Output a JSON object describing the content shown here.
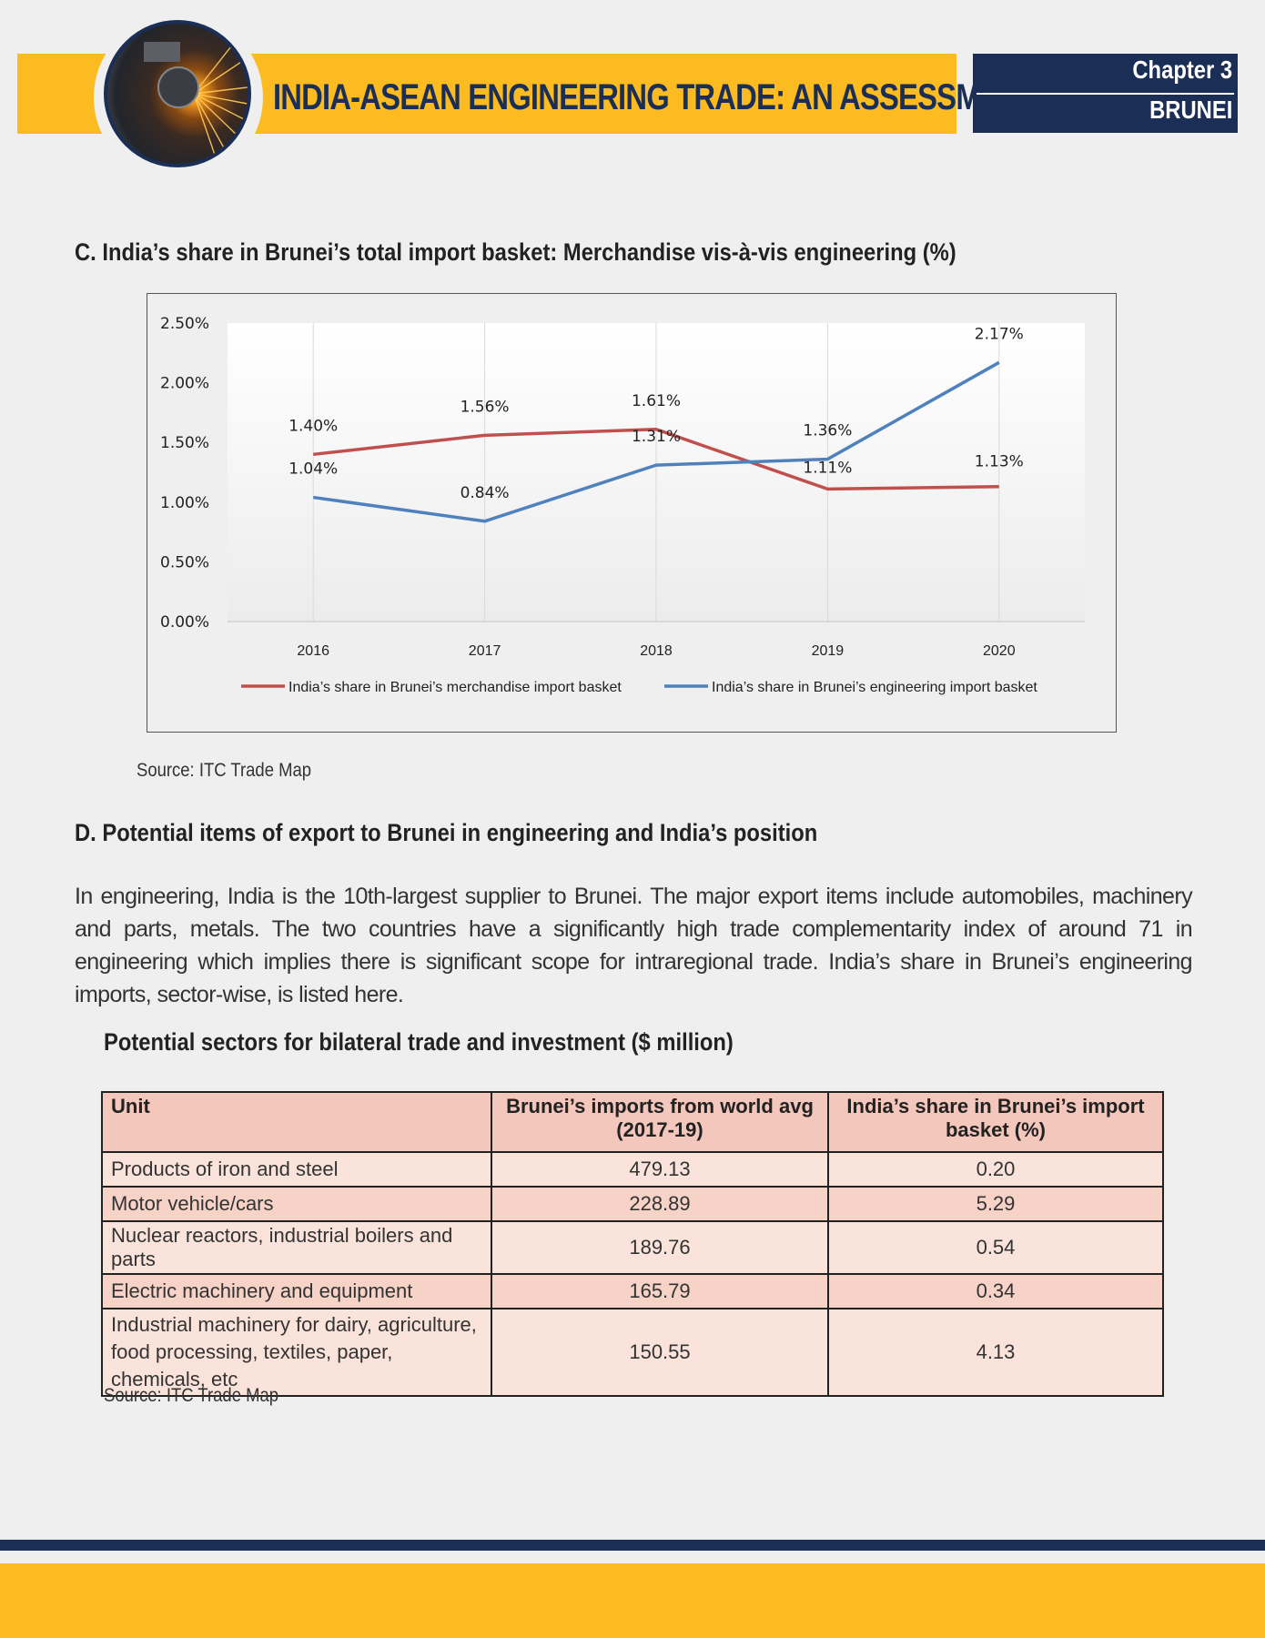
{
  "header": {
    "title": "INDIA-ASEAN ENGINEERING TRADE: AN ASSESSMENT",
    "chapter": "Chapter 3",
    "country": "BRUNEI",
    "logo_icon": "grinding-sparks-icon"
  },
  "section_c": {
    "title": "C.  India’s share in Brunei’s total import basket: Merchandise vis-à-vis engineering (%)",
    "source": "Source: ITC Trade Map"
  },
  "chart_data": {
    "type": "line",
    "title": "",
    "xlabel": "",
    "ylabel": "",
    "categories": [
      "2016",
      "2017",
      "2018",
      "2019",
      "2020"
    ],
    "y_ticks": [
      "0.00%",
      "0.50%",
      "1.00%",
      "1.50%",
      "2.00%",
      "2.50%"
    ],
    "ylim": [
      0,
      2.5
    ],
    "grid": "vertical",
    "legend_position": "bottom",
    "series": [
      {
        "name": "India’s share in Brunei’s merchandise import basket",
        "color": "#c0504d",
        "values": [
          1.4,
          1.56,
          1.61,
          1.11,
          1.13
        ],
        "labels": [
          "1.40%",
          "1.56%",
          "1.61%",
          "1.11%",
          "1.13%"
        ]
      },
      {
        "name": "India’s share in Brunei’s engineering import basket",
        "color": "#4f81bd",
        "values": [
          1.04,
          0.84,
          1.31,
          1.36,
          2.17
        ],
        "labels": [
          "1.04%",
          "0.84%",
          "1.31%",
          "1.36%",
          "2.17%"
        ]
      }
    ]
  },
  "section_d": {
    "title": "D.  Potential items of export to Brunei in engineering and India’s position",
    "body": "In engineering, India is the 10th-largest supplier to Brunei. The major export items include automobiles, machinery and parts, metals. The two countries have a significantly high trade complementarity index of around 71 in engineering which implies there is significant scope for intraregional trade. India’s share in Brunei’s engineering imports, sector-wise, is listed here."
  },
  "table": {
    "title": "Potential sectors for bilateral trade and investment ($ million)",
    "headers": [
      "Unit",
      "Brunei’s imports from world avg (2017-19)",
      "India’s share in Brunei’s import basket (%)"
    ],
    "rows": [
      {
        "unit": "Products of iron and steel",
        "imports": "479.13",
        "share": "0.20"
      },
      {
        "unit": "Motor vehicle/cars",
        "imports": "228.89",
        "share": "5.29"
      },
      {
        "unit": "Nuclear reactors, industrial boilers and parts",
        "imports": "189.76",
        "share": "0.54"
      },
      {
        "unit": "Electric machinery and equipment",
        "imports": "165.79",
        "share": "0.34"
      },
      {
        "unit": "Industrial machinery for dairy, agriculture, food processing, textiles, paper, chemicals, etc",
        "imports": "150.55",
        "share": "4.13"
      }
    ],
    "source": "Source: ITC Trade Map"
  },
  "colors": {
    "navy": "#1b2e55",
    "yellow": "#fbbb21",
    "header_cell": "#f4c7bc"
  }
}
